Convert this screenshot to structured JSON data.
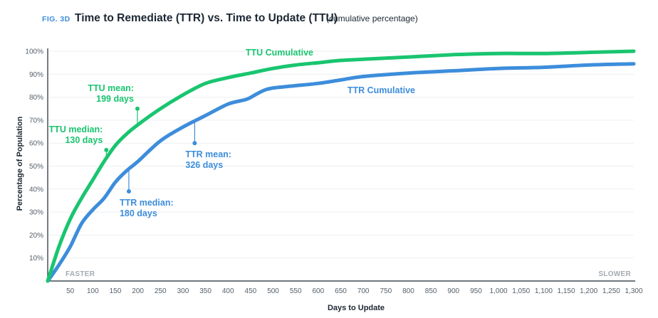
{
  "header": {
    "fig_label": "FIG. 3D",
    "title": "Time to Remediate (TTR) vs. Time to Update (TTU)",
    "subtitle": "(cumulative percentage)"
  },
  "colors": {
    "ttu": "#19c56f",
    "ttr": "#3d8ddb",
    "fig_label": "#3d8ddb",
    "axis": "#1c2733",
    "grid": "#eceff1",
    "tick_text": "#555f69",
    "corner_text": "#a3aab1"
  },
  "chart_data": {
    "type": "line",
    "title": "Time to Remediate (TTR) vs. Time to Update (TTU)",
    "subtitle": "(cumulative percentage)",
    "xlabel": "Days to Update",
    "ylabel": "Percentage of Population",
    "xlim": [
      0,
      1300
    ],
    "ylim": [
      0,
      100
    ],
    "x_ticks": [
      50,
      100,
      150,
      200,
      250,
      300,
      350,
      400,
      450,
      500,
      550,
      600,
      650,
      700,
      750,
      800,
      850,
      900,
      950,
      1000,
      1050,
      1100,
      1150,
      1200,
      1250,
      1300
    ],
    "x_tick_labels": [
      "50",
      "100",
      "150",
      "200",
      "250",
      "300",
      "350",
      "400",
      "450",
      "500",
      "550",
      "600",
      "650",
      "700",
      "750",
      "800",
      "850",
      "900",
      "950",
      "1,000",
      "1,050",
      "1,100",
      "1,150",
      "1,200",
      "1,250",
      "1,300"
    ],
    "y_ticks": [
      10,
      20,
      30,
      40,
      50,
      60,
      70,
      80,
      90,
      100
    ],
    "y_tick_labels": [
      "10%",
      "20%",
      "30%",
      "40%",
      "50%",
      "60%",
      "70%",
      "80%",
      "90%",
      "100%"
    ],
    "corner_labels": {
      "left": "FASTER",
      "right": "SLOWER"
    },
    "series": [
      {
        "name": "TTU Cumulative",
        "x": [
          0,
          25,
          50,
          75,
          100,
          125,
          150,
          175,
          200,
          250,
          300,
          350,
          400,
          450,
          500,
          550,
          600,
          650,
          700,
          800,
          900,
          1000,
          1100,
          1200,
          1300
        ],
        "values": [
          0,
          15,
          27,
          36,
          44,
          52,
          59,
          64,
          68,
          75,
          81,
          86,
          88.5,
          90.5,
          92.5,
          94,
          95,
          96,
          96.5,
          97.5,
          98.5,
          99,
          99,
          99.5,
          100
        ]
      },
      {
        "name": "TTR Cumulative",
        "x": [
          0,
          25,
          50,
          75,
          100,
          125,
          150,
          175,
          200,
          250,
          300,
          350,
          400,
          440,
          460,
          480,
          500,
          550,
          600,
          650,
          700,
          800,
          900,
          1000,
          1100,
          1200,
          1300
        ],
        "values": [
          0,
          7,
          15,
          25,
          31,
          36,
          43,
          48,
          52,
          61,
          67,
          72,
          77,
          79,
          81,
          83,
          84,
          85,
          86,
          87.5,
          89,
          90.5,
          91.5,
          92.5,
          93,
          94,
          94.5
        ]
      }
    ],
    "annotations": [
      {
        "series": "TTU Cumulative",
        "lines": [
          "TTU median:",
          "130 days"
        ],
        "x": 130,
        "y": 57
      },
      {
        "series": "TTU Cumulative",
        "lines": [
          "TTU mean:",
          "199 days"
        ],
        "x": 199,
        "y": 75
      },
      {
        "series": "TTR Cumulative",
        "lines": [
          "TTR median:",
          "180 days"
        ],
        "x": 180,
        "y": 39
      },
      {
        "series": "TTR Cumulative",
        "lines": [
          "TTR mean:",
          "326 days"
        ],
        "x": 326,
        "y": 60
      }
    ]
  }
}
